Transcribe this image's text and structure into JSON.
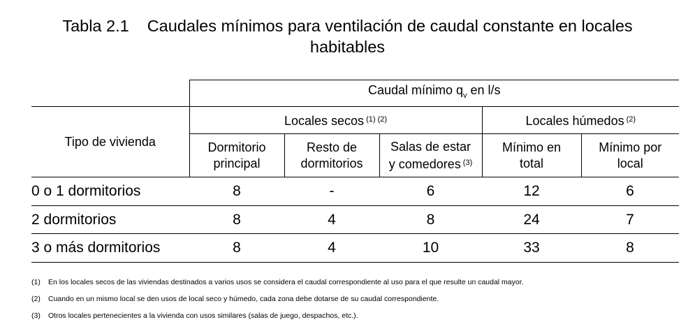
{
  "title": {
    "number": "Tabla 2.1",
    "line1": "Caudales mínimos para ventilación de caudal constante en locales",
    "line2": "habitables"
  },
  "header": {
    "caudal_prefix": "Caudal mínimo q",
    "caudal_sub": "v",
    "caudal_suffix": " en l/s",
    "tipo": "Tipo de vivienda",
    "secos": "Locales secos",
    "secos_refs": "(1) (2)",
    "humedos": "Locales húmedos",
    "humedos_refs": "(2)",
    "col1_l1": "Dormitorio",
    "col1_l2": "principal",
    "col2_l1": "Resto de",
    "col2_l2": "dormitorios",
    "col3_l1": "Salas de estar",
    "col3_l2": "y comedores",
    "col3_ref": "(3)",
    "col4_l1": "Mínimo en",
    "col4_l2": "total",
    "col5_l1": "Mínimo por",
    "col5_l2": "local"
  },
  "rows": [
    {
      "tipo": "0 o 1 dormitorios",
      "dorm_principal": "8",
      "resto": "-",
      "salas": "6",
      "min_total": "12",
      "min_local": "6"
    },
    {
      "tipo": "2 dormitorios",
      "dorm_principal": "8",
      "resto": "4",
      "salas": "8",
      "min_total": "24",
      "min_local": "7"
    },
    {
      "tipo": "3 o más dormitorios",
      "dorm_principal": "8",
      "resto": "4",
      "salas": "10",
      "min_total": "33",
      "min_local": "8"
    }
  ],
  "footnotes": [
    {
      "num": "(1)",
      "text": "En los locales secos de las viviendas destinados a varios usos se considera el caudal correspondiente al uso para el que resulte un caudal mayor."
    },
    {
      "num": "(2)",
      "text": "Cuando en un mismo local se den usos de local seco y húmedo, cada zona debe dotarse de su caudal correspondiente."
    },
    {
      "num": "(3)",
      "text": "Otros locales pertenecientes a la vivienda con usos similares (salas de juego, despachos, etc.)."
    }
  ]
}
